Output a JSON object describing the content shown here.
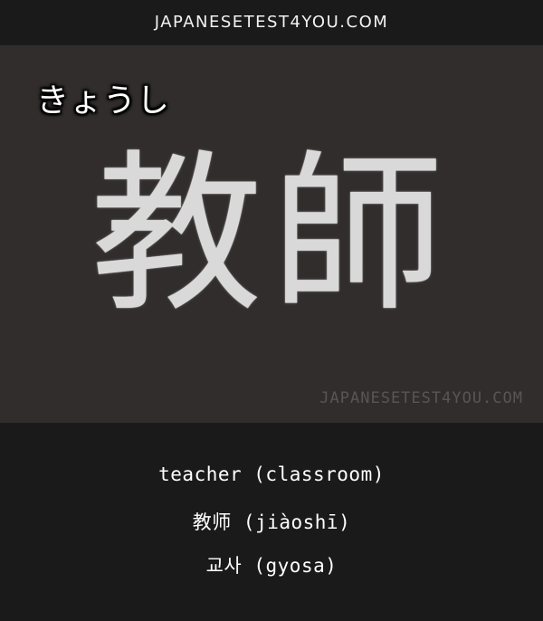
{
  "header": {
    "site": "JAPANESETEST4YOU.COM"
  },
  "card": {
    "reading": "きょうし",
    "word": "教師",
    "watermark": "JAPANESETEST4YOU.COM"
  },
  "translations": {
    "english": "teacher (classroom)",
    "chinese": "教师 (jiàoshī)",
    "korean": "교사 (gyosa)"
  },
  "colors": {
    "background": "#1b1a1b",
    "card": "#322d2d",
    "text": "#ffffff",
    "watermark": "#5a5555"
  }
}
